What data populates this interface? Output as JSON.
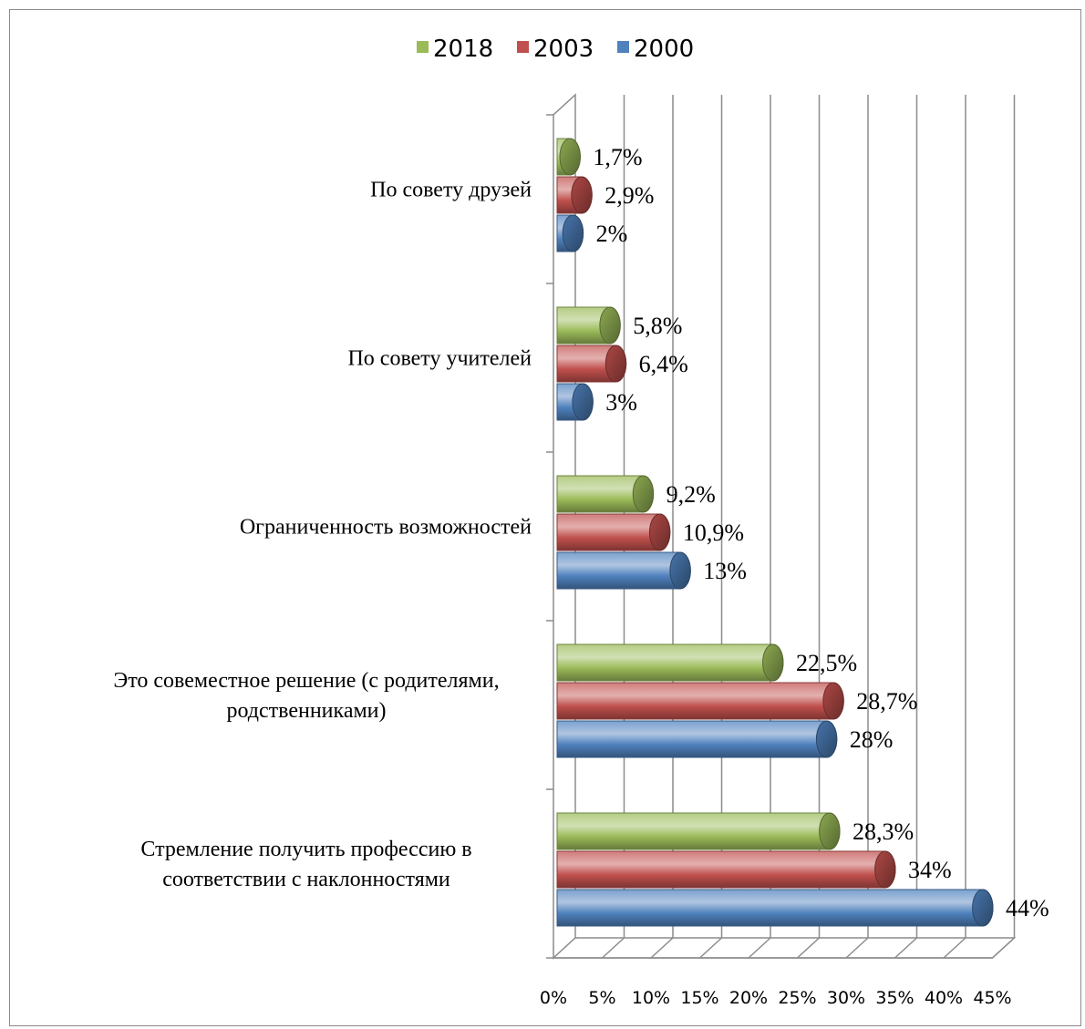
{
  "chart_data": {
    "type": "bar",
    "orientation": "horizontal",
    "style": "3d-cylinder",
    "categories": [
      "По совету друзей",
      "По совету учителей",
      "Ограниченность возможностей",
      "Это совеместное решение (с родителями, родственниками)",
      "Стремление получить профессию в соответствии с наклонностями"
    ],
    "category_lines": [
      [
        "По совету друзей"
      ],
      [
        "По совету учителей"
      ],
      [
        "Ограниченность возможностей"
      ],
      [
        "Это совеместное решение (с родителями,",
        "родственниками)"
      ],
      [
        "Стремление получить профессию в",
        "соответствии с наклонностями"
      ]
    ],
    "series": [
      {
        "name": "2018",
        "color": "#9bbb59",
        "values": [
          1.7,
          5.8,
          9.2,
          22.5,
          28.3
        ],
        "labels": [
          "1,7%",
          "5,8%",
          "9,2%",
          "22,5%",
          "28,3%"
        ]
      },
      {
        "name": "2003",
        "color": "#c0504d",
        "values": [
          2.9,
          6.4,
          10.9,
          28.7,
          34
        ],
        "labels": [
          "2,9%",
          "6,4%",
          "10,9%",
          "28,7%",
          "34%"
        ]
      },
      {
        "name": "2000",
        "color": "#4f81bd",
        "values": [
          2,
          3,
          13,
          28,
          44
        ],
        "labels": [
          "2%",
          "3%",
          "13%",
          "28%",
          "44%"
        ]
      }
    ],
    "legend": {
      "position": "top",
      "items": [
        "2018",
        "2003",
        "2000"
      ]
    },
    "x_ticks": [
      "0%",
      "5%",
      "10%",
      "15%",
      "20%",
      "25%",
      "30%",
      "35%",
      "40%",
      "45%"
    ],
    "xlim": [
      0,
      45
    ],
    "grid": true
  }
}
